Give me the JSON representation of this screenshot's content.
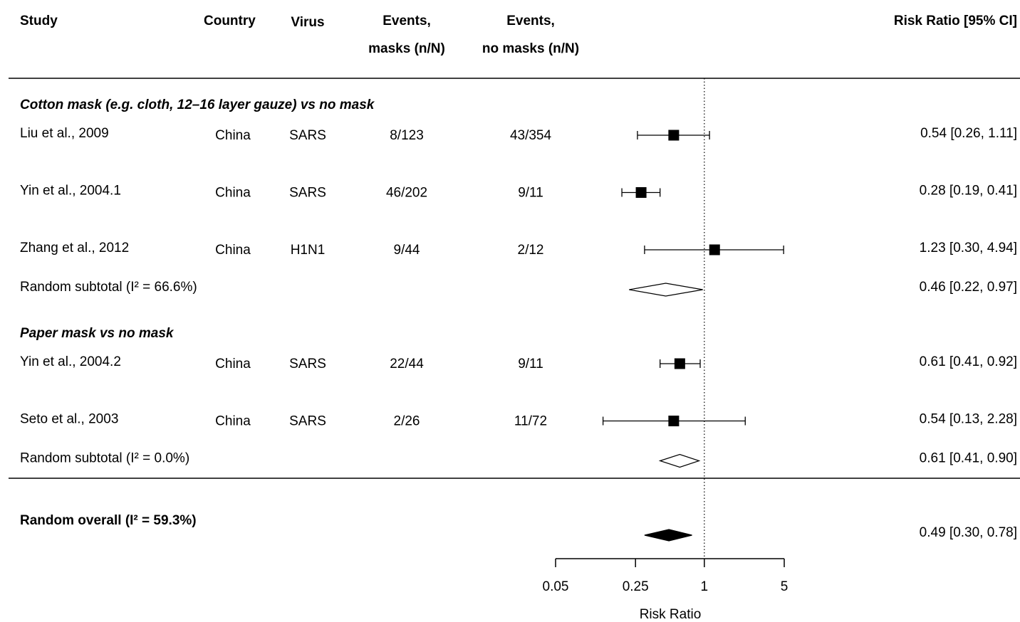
{
  "chart_data": {
    "type": "forest",
    "columns": [
      "Study",
      "Country",
      "Virus",
      [
        "Events,",
        "masks (n/N)"
      ],
      [
        "Events,",
        "no masks (n/N)"
      ],
      "Risk Ratio [95% CI]"
    ],
    "groups": [
      {
        "title": "Cotton mask (e.g. cloth, 12–16 layer gauze) vs no mask",
        "studies": [
          {
            "study": "Liu et al., 2009",
            "country": "China",
            "virus": "SARS",
            "masks": "8/123",
            "no_masks": "43/354",
            "estimate": 0.54,
            "lower": 0.26,
            "upper": 1.11,
            "label": "0.54 [0.26, 1.11]"
          },
          {
            "study": "Yin et al., 2004.1",
            "country": "China",
            "virus": "SARS",
            "masks": "46/202",
            "no_masks": "9/11",
            "estimate": 0.28,
            "lower": 0.19,
            "upper": 0.41,
            "label": "0.28 [0.19, 0.41]"
          },
          {
            "study": "Zhang et al., 2012",
            "country": "China",
            "virus": "H1N1",
            "masks": "9/44",
            "no_masks": "2/12",
            "estimate": 1.23,
            "lower": 0.3,
            "upper": 4.94,
            "label": "1.23 [0.30, 4.94]"
          }
        ],
        "subtotal": {
          "name": "Random subtotal (I² = 66.6%)",
          "estimate": 0.46,
          "lower": 0.22,
          "upper": 0.97,
          "label": "0.46 [0.22, 0.97]"
        }
      },
      {
        "title": "Paper mask vs no mask",
        "studies": [
          {
            "study": "Yin et al., 2004.2",
            "country": "China",
            "virus": "SARS",
            "masks": "22/44",
            "no_masks": "9/11",
            "estimate": 0.61,
            "lower": 0.41,
            "upper": 0.92,
            "label": "0.61 [0.41, 0.92]"
          },
          {
            "study": "Seto et al., 2003",
            "country": "China",
            "virus": "SARS",
            "masks": "2/26",
            "no_masks": "11/72",
            "estimate": 0.54,
            "lower": 0.13,
            "upper": 2.28,
            "label": "0.54 [0.13, 2.28]"
          }
        ],
        "subtotal": {
          "name": "Random subtotal (I² = 0.0%)",
          "estimate": 0.61,
          "lower": 0.41,
          "upper": 0.9,
          "label": "0.61 [0.41, 0.90]"
        }
      }
    ],
    "overall": {
      "name": "Random overall (I² = 59.3%)",
      "estimate": 0.49,
      "lower": 0.3,
      "upper": 0.78,
      "label": "0.49 [0.30, 0.78]"
    },
    "x_label": "Risk Ratio",
    "xlim": [
      0.05,
      5
    ],
    "xticks": [
      0.05,
      0.25,
      1,
      5
    ],
    "log_x": true,
    "reference_line": 1,
    "color": "#000000"
  }
}
